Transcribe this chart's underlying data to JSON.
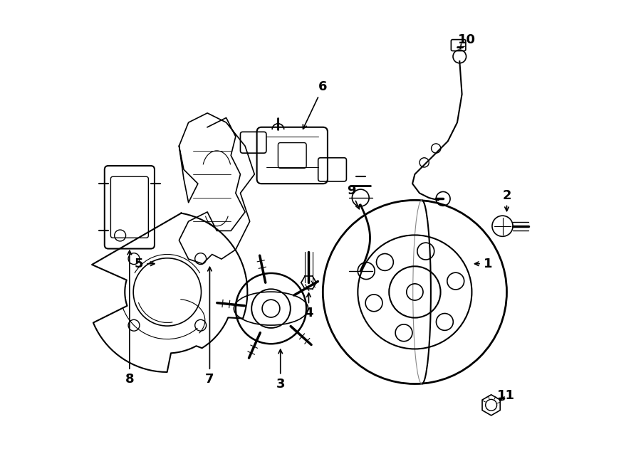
{
  "bg_color": "#ffffff",
  "line_color": "#000000",
  "line_width": 1.2,
  "fig_width": 9.0,
  "fig_height": 6.62,
  "dpi": 100,
  "label_positions": {
    "1": [
      0.855,
      0.44,
      0.82,
      0.44
    ],
    "2": [
      0.895,
      0.585,
      0.895,
      0.545
    ],
    "3": [
      0.415,
      0.185,
      0.415,
      0.265
    ],
    "4": [
      0.475,
      0.335,
      0.475,
      0.385
    ],
    "5": [
      0.115,
      0.44,
      0.155,
      0.44
    ],
    "6": [
      0.505,
      0.815,
      0.46,
      0.72
    ],
    "7": [
      0.265,
      0.195,
      0.265,
      0.44
    ],
    "8": [
      0.095,
      0.195,
      0.095,
      0.475
    ],
    "9": [
      0.565,
      0.595,
      0.585,
      0.55
    ],
    "10": [
      0.81,
      0.915,
      0.795,
      0.895
    ],
    "11": [
      0.893,
      0.16,
      0.875,
      0.145
    ]
  }
}
